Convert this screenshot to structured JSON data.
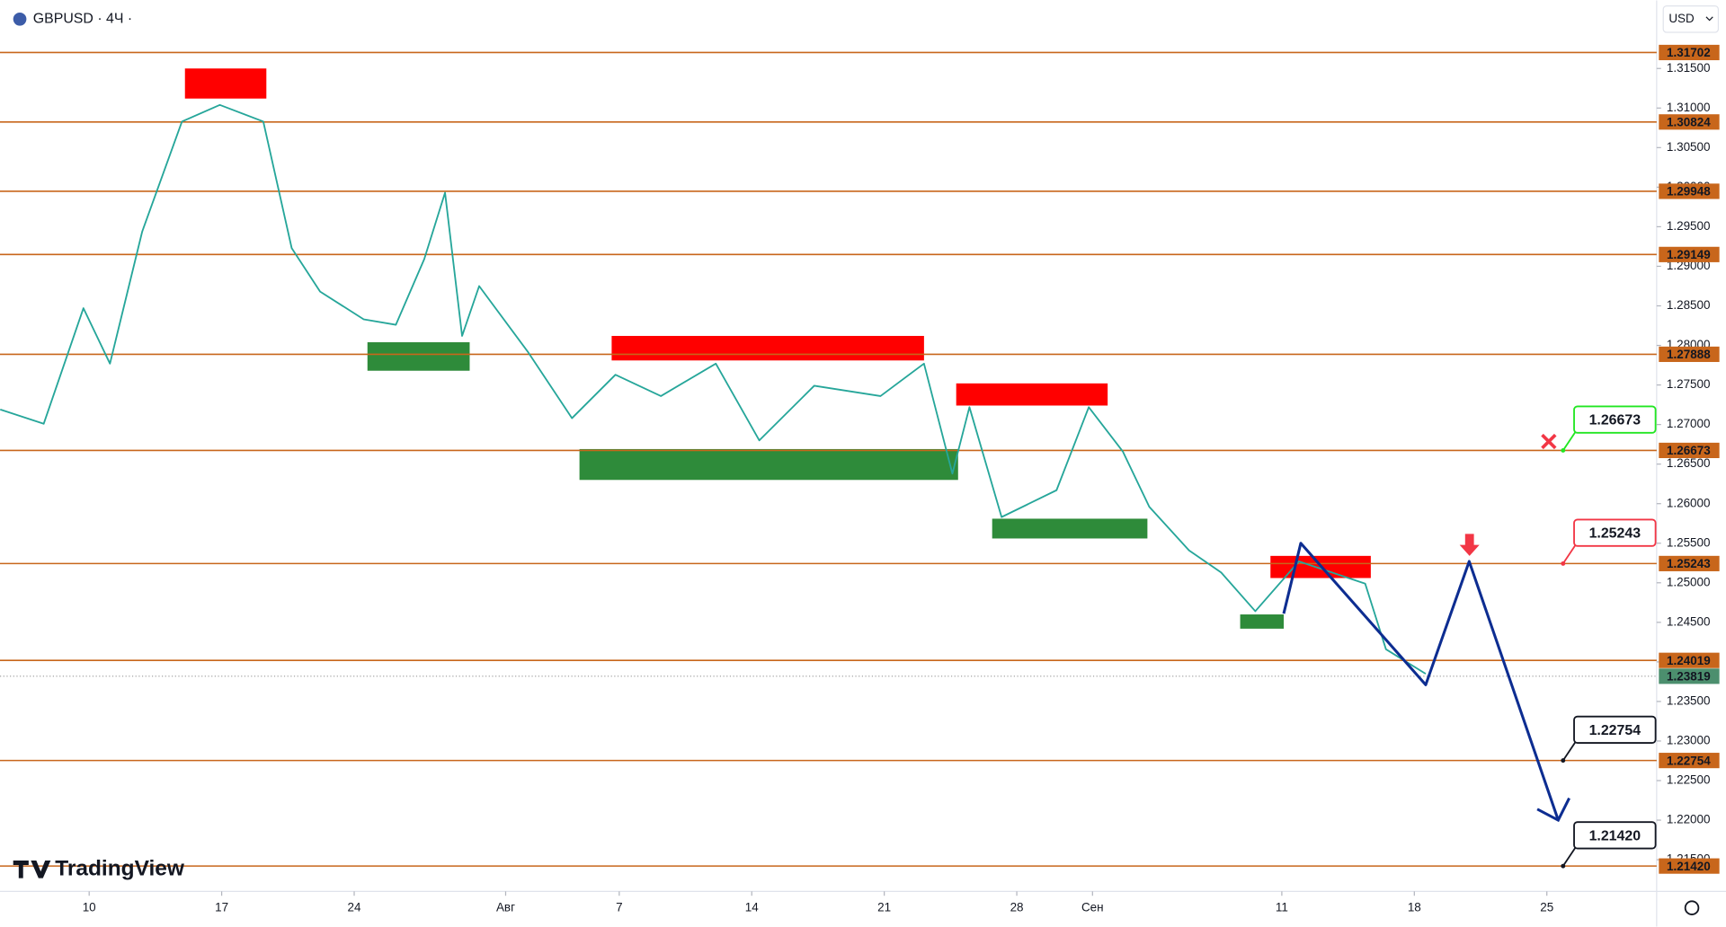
{
  "chart_data": {
    "type": "line",
    "title": "GBPUSD · 4Ч ·",
    "currency": "USD",
    "brand": "TradingView",
    "xlim": [
      -4.71,
      82.8
    ],
    "ylim": [
      1.211,
      1.3236
    ],
    "xticks": [
      {
        "value": 0,
        "label": "10"
      },
      {
        "value": 7,
        "label": "17"
      },
      {
        "value": 14,
        "label": "24"
      },
      {
        "value": 22,
        "label": "Авг"
      },
      {
        "value": 28,
        "label": "7"
      },
      {
        "value": 35,
        "label": "14"
      },
      {
        "value": 42,
        "label": "21"
      },
      {
        "value": 49,
        "label": "28"
      },
      {
        "value": 53,
        "label": "Сен"
      },
      {
        "value": 63,
        "label": "11"
      },
      {
        "value": 70,
        "label": "18"
      },
      {
        "value": 77,
        "label": "25"
      }
    ],
    "yticks": [
      {
        "value": 1.215,
        "label": "1.21500"
      },
      {
        "value": 1.22,
        "label": "1.22000"
      },
      {
        "value": 1.225,
        "label": "1.22500"
      },
      {
        "value": 1.23,
        "label": "1.23000"
      },
      {
        "value": 1.235,
        "label": "1.23500"
      },
      {
        "value": 1.24,
        "label": "1.24000"
      },
      {
        "value": 1.245,
        "label": "1.24500"
      },
      {
        "value": 1.25,
        "label": "1.25000"
      },
      {
        "value": 1.255,
        "label": "1.25500"
      },
      {
        "value": 1.26,
        "label": "1.26000"
      },
      {
        "value": 1.265,
        "label": "1.26500"
      },
      {
        "value": 1.27,
        "label": "1.27000"
      },
      {
        "value": 1.275,
        "label": "1.27500"
      },
      {
        "value": 1.28,
        "label": "1.28000"
      },
      {
        "value": 1.285,
        "label": "1.28500"
      },
      {
        "value": 1.29,
        "label": "1.29000"
      },
      {
        "value": 1.295,
        "label": "1.29500"
      },
      {
        "value": 1.3,
        "label": "1.30000"
      },
      {
        "value": 1.305,
        "label": "1.30500"
      },
      {
        "value": 1.31,
        "label": "1.31000"
      },
      {
        "value": 1.315,
        "label": "1.31500"
      }
    ],
    "x": [
      -4.7,
      -2.4,
      -0.3,
      1.1,
      2.8,
      4.9,
      6.9,
      9.2,
      10.7,
      12.2,
      14.5,
      16.2,
      17.7,
      18.8,
      19.7,
      20.6,
      23.2,
      25.5,
      27.8,
      30.2,
      33.1,
      35.4,
      38.3,
      41.8,
      44.1,
      45.6,
      46.5,
      48.2,
      51.1,
      52.8,
      54.6,
      56.0,
      58.1,
      59.8,
      61.6,
      63.9,
      67.4,
      68.5,
      70.6
    ],
    "series": [
      {
        "color": "#26a69a",
        "values": [
          1.2719,
          1.2701,
          1.2847,
          1.2777,
          1.2944,
          1.3083,
          1.3104,
          1.3083,
          1.2923,
          1.2868,
          1.2833,
          1.2826,
          1.2909,
          1.2993,
          1.2812,
          1.2875,
          1.2791,
          1.2708,
          1.2763,
          1.2736,
          1.2777,
          1.268,
          1.2749,
          1.2736,
          1.2777,
          1.2638,
          1.2722,
          1.2583,
          1.2617,
          1.2722,
          1.2666,
          1.2596,
          1.2541,
          1.2513,
          1.2464,
          1.2527,
          1.2499,
          1.2416,
          1.2385
        ]
      }
    ],
    "projection": {
      "color": "#0d2d91",
      "x": [
        63.1,
        64.0,
        70.6,
        72.9,
        77.6
      ],
      "values": [
        1.2461,
        1.255,
        1.2371,
        1.2527,
        1.22
      ]
    },
    "levels": {
      "color": "#c8661b",
      "values": [
        {
          "value": 1.31702,
          "label": "1.31702"
        },
        {
          "value": 1.30824,
          "label": "1.30824"
        },
        {
          "value": 1.29948,
          "label": "1.29948"
        },
        {
          "value": 1.29149,
          "label": "1.29149"
        },
        {
          "value": 1.27888,
          "label": "1.27888"
        },
        {
          "value": 1.26673,
          "label": "1.26673"
        },
        {
          "value": 1.25243,
          "label": "1.25243"
        },
        {
          "value": 1.24019,
          "label": "1.24019"
        },
        {
          "value": 1.22754,
          "label": "1.22754"
        },
        {
          "value": 1.2142,
          "label": "1.21420"
        }
      ]
    },
    "current_price": {
      "value": 1.23819,
      "label": "1.23819",
      "color": "#4c8f6e"
    },
    "callouts": [
      {
        "level": 5,
        "color": "#22e622"
      },
      {
        "level": 6,
        "color": "#f23645"
      },
      {
        "level": 8,
        "color": "#131722"
      },
      {
        "level": 9,
        "color": "#131722"
      }
    ],
    "zones": [
      {
        "x0": 5.06,
        "x1": 9.36,
        "top": 1.315,
        "bottom": 1.3112,
        "color": "#ff0000"
      },
      {
        "x0": 14.7,
        "x1": 20.1,
        "top": 1.2804,
        "bottom": 1.2768,
        "color": "#2e8b3a"
      },
      {
        "x0": 27.6,
        "x1": 44.1,
        "top": 1.2812,
        "bottom": 1.2781,
        "color": "#ff0000"
      },
      {
        "x0": 25.9,
        "x1": 45.9,
        "top": 1.2669,
        "bottom": 1.263,
        "color": "#2e8b3a"
      },
      {
        "x0": 45.8,
        "x1": 53.8,
        "top": 1.2752,
        "bottom": 1.2724,
        "color": "#ff0000"
      },
      {
        "x0": 47.7,
        "x1": 55.9,
        "top": 1.2581,
        "bottom": 1.2556,
        "color": "#2e8b3a"
      },
      {
        "x0": 62.4,
        "x1": 67.7,
        "top": 1.2534,
        "bottom": 1.2506,
        "color": "#ff0000"
      },
      {
        "x0": 60.8,
        "x1": 63.1,
        "top": 1.246,
        "bottom": 1.2442,
        "color": "#2e8b3a"
      }
    ]
  }
}
